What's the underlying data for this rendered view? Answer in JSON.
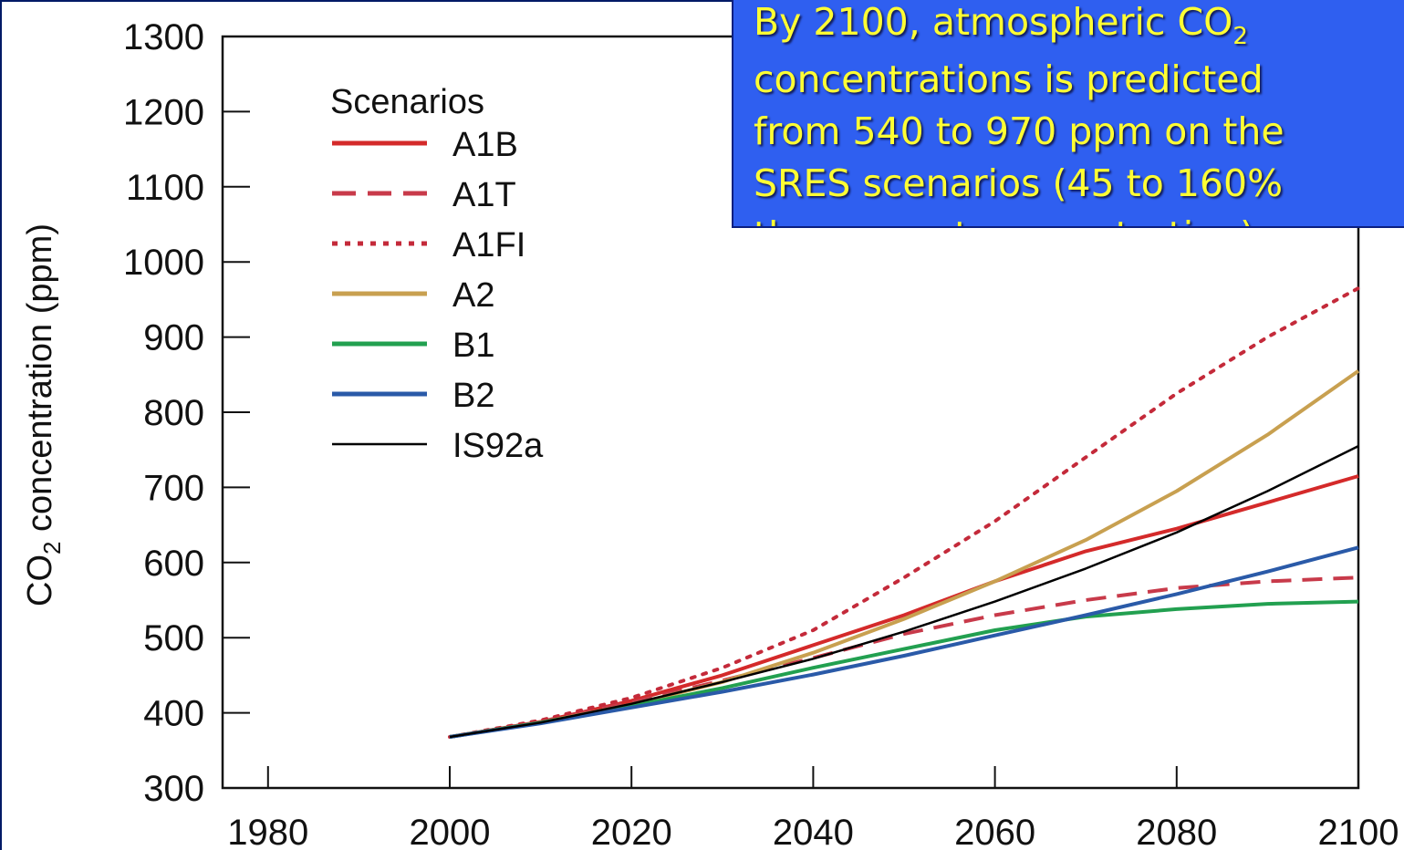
{
  "callout": {
    "line1": "By 2100, atmospheric CO",
    "line1_sub": "2",
    "line2": "concentrations is predicted",
    "line3": "from 540 to 970 ppm on the",
    "line4": "SRES scenarios (45 to 160%",
    "line5": "the present concentration)",
    "background_color": "#2f5ff0",
    "text_color": "#ffff33"
  },
  "chart_data": {
    "type": "line",
    "ylabel": "CO2 concentration (ppm)",
    "ylabel_main": "CO",
    "ylabel_sub": "2",
    "ylabel_rest": " concentration (ppm)",
    "xlim": [
      1975,
      2100
    ],
    "ylim": [
      300,
      1300
    ],
    "xticks": [
      1980,
      2000,
      2020,
      2040,
      2060,
      2080,
      2100
    ],
    "yticks": [
      300,
      400,
      500,
      600,
      700,
      800,
      900,
      1000,
      1100,
      1200,
      1300
    ],
    "legend": {
      "title": "Scenarios",
      "placement": "top-left"
    },
    "grid": false,
    "x": [
      2000,
      2010,
      2020,
      2030,
      2040,
      2050,
      2060,
      2070,
      2080,
      2090,
      2100
    ],
    "series": [
      {
        "name": "A1B",
        "color": "#d42a2a",
        "style": "solid",
        "values": [
          368,
          388,
          416,
          450,
          490,
          530,
          575,
          615,
          645,
          680,
          715
        ]
      },
      {
        "name": "A1T",
        "color": "#c83a4a",
        "style": "dashed",
        "values": [
          368,
          388,
          414,
          443,
          473,
          505,
          530,
          550,
          566,
          575,
          580
        ]
      },
      {
        "name": "A1FI",
        "color": "#c42a3a",
        "style": "dotted",
        "values": [
          368,
          390,
          420,
          460,
          510,
          580,
          655,
          740,
          825,
          900,
          965
        ]
      },
      {
        "name": "A2",
        "color": "#c8a050",
        "style": "solid",
        "values": [
          368,
          387,
          411,
          441,
          480,
          525,
          575,
          630,
          695,
          770,
          855
        ]
      },
      {
        "name": "B1",
        "color": "#22a050",
        "style": "solid",
        "values": [
          368,
          387,
          409,
          433,
          460,
          485,
          510,
          528,
          538,
          545,
          548
        ]
      },
      {
        "name": "B2",
        "color": "#2a5aa8",
        "style": "solid",
        "values": [
          368,
          386,
          407,
          428,
          451,
          476,
          503,
          530,
          558,
          588,
          620
        ]
      },
      {
        "name": "IS92a",
        "color": "#000000",
        "style": "solid",
        "values": [
          368,
          387,
          412,
          441,
          472,
          508,
          548,
          592,
          640,
          695,
          755
        ]
      }
    ]
  }
}
